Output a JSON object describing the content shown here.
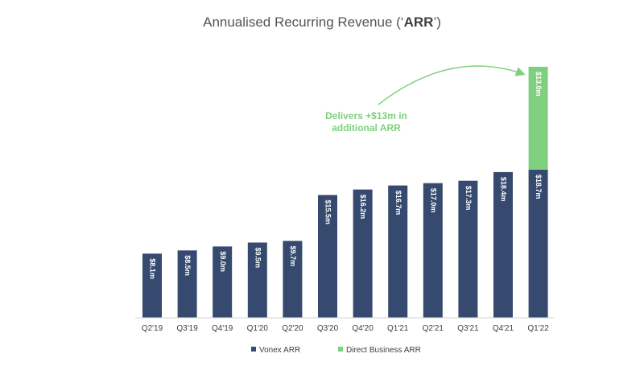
{
  "chart_data": {
    "type": "bar",
    "title_prefix": "Annualised Recurring Revenue (‘",
    "title_bold": "ARR",
    "title_suffix": "’)",
    "categories": [
      "Q2'19",
      "Q3'19",
      "Q4'19",
      "Q1'20",
      "Q2'20",
      "Q3'20",
      "Q4'20",
      "Q1'21",
      "Q2'21",
      "Q3'21",
      "Q4'21",
      "Q1'22"
    ],
    "stacked": true,
    "series": [
      {
        "name": "Vonex ARR",
        "color": "#354a6e",
        "values": [
          8.1,
          8.5,
          9.0,
          9.5,
          9.7,
          15.5,
          16.2,
          16.7,
          17.0,
          17.3,
          18.4,
          18.7
        ],
        "labels": [
          "$8.1m",
          "$8.5m",
          "$9.0m",
          "$9.5m",
          "$9.7m",
          "$15.5m",
          "$16.2m",
          "$16.7m",
          "$17.0m",
          "$17.3m",
          "$18.4m",
          "$18.7m"
        ]
      },
      {
        "name": "Direct Business ARR",
        "color": "#7ed07e",
        "values": [
          0,
          0,
          0,
          0,
          0,
          0,
          0,
          0,
          0,
          0,
          0,
          13.0
        ],
        "labels": [
          "",
          "",
          "",
          "",
          "",
          "",
          "",
          "",
          "",
          "",
          "",
          "$13.0m"
        ]
      }
    ],
    "annotation": [
      "Delivers +$13m in",
      "additional ARR"
    ],
    "ylim": [
      0,
      31.7
    ],
    "legend_position": "bottom",
    "grid": false
  }
}
